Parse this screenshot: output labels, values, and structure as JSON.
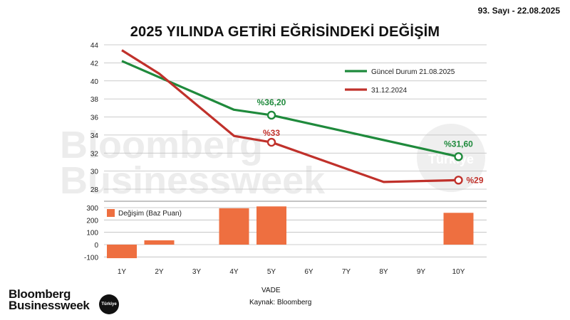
{
  "issue_label": "93. Sayı - 22.08.2025",
  "title": "2025 YILINDA GETİRİ EĞRİSİNDEKİ DEĞİŞİM",
  "watermark": {
    "line1": "Bloomberg",
    "line2": "Businessweek",
    "badge": "Türkiye"
  },
  "footer": {
    "brand_line1": "Bloomberg",
    "brand_line2": "Businessweek",
    "badge": "Türkiye",
    "source": "Kaynak: Bloomberg"
  },
  "colors": {
    "current": "#1f8a3c",
    "previous": "#c0312b",
    "change": "#ee6f40",
    "grid": "#bbbbbb"
  },
  "chart_data": [
    {
      "type": "line",
      "x": [
        "1Y",
        "2Y",
        "3Y",
        "4Y",
        "5Y",
        "6Y",
        "7Y",
        "8Y",
        "9Y",
        "10Y"
      ],
      "xlabel": "VADE",
      "ylim": [
        28,
        44
      ],
      "yticks": [
        28,
        30,
        32,
        34,
        36,
        38,
        40,
        42,
        44
      ],
      "grid": true,
      "legend_position": "top-right",
      "series": [
        {
          "name": "Güncel Durum 21.08.2025",
          "points": [
            [
              "1Y",
              42.2
            ],
            [
              "4Y",
              36.8
            ],
            [
              "5Y",
              36.2
            ],
            [
              "10Y",
              31.6
            ]
          ]
        },
        {
          "name": "31.12.2024",
          "points": [
            [
              "1Y",
              43.4
            ],
            [
              "2Y",
              40.8
            ],
            [
              "4Y",
              33.9
            ],
            [
              "5Y",
              33.2
            ],
            [
              "8Y",
              28.8
            ],
            [
              "10Y",
              29.0
            ]
          ]
        }
      ],
      "annotations": [
        {
          "series": 0,
          "x": "5Y",
          "text": "%36,20"
        },
        {
          "series": 0,
          "x": "10Y",
          "text": "%31,60"
        },
        {
          "series": 1,
          "x": "5Y",
          "text": "%33"
        },
        {
          "series": 1,
          "x": "10Y",
          "text": "%29"
        }
      ]
    },
    {
      "type": "bar",
      "categories": [
        "1Y",
        "2Y",
        "3Y",
        "4Y",
        "5Y",
        "6Y",
        "7Y",
        "8Y",
        "9Y",
        "10Y"
      ],
      "series": [
        {
          "name": "Değişim (Baz Puan)",
          "values": [
            -110,
            35,
            null,
            295,
            310,
            null,
            null,
            null,
            null,
            258
          ]
        }
      ],
      "ylim": [
        -130,
        320
      ],
      "yticks": [
        -100,
        0,
        100,
        200,
        300
      ],
      "xlabel": "VADE",
      "grid": true,
      "legend_position": "top-left"
    }
  ]
}
